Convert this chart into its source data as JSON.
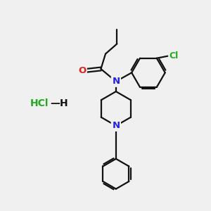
{
  "background_color": "#f0f0f0",
  "bond_color": "#111111",
  "nitrogen_color": "#2222dd",
  "oxygen_color": "#dd2222",
  "chlorine_color": "#22aa22",
  "line_width": 1.6,
  "figsize": [
    3.0,
    3.0
  ],
  "dpi": 100,
  "xlim": [
    0,
    10
  ],
  "ylim": [
    0,
    10
  ],
  "hcl_text": "HCl",
  "h_text": "H",
  "dash": "—"
}
